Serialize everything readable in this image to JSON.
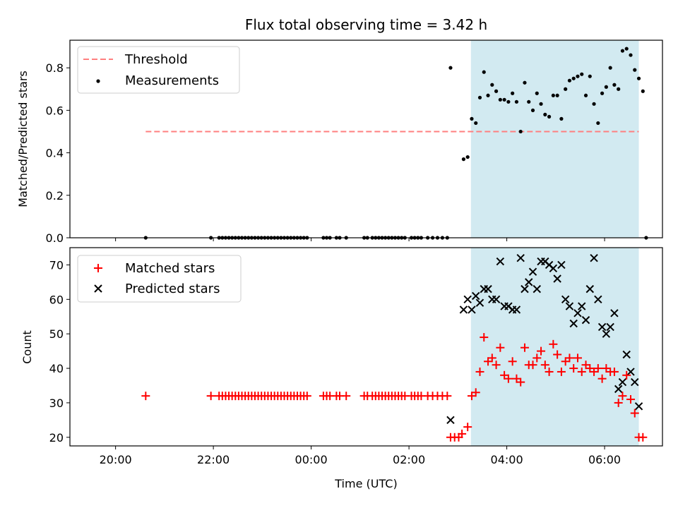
{
  "chart_data": [
    {
      "type": "scatter",
      "title": "Flux total observing time = 3.42 h",
      "xlabel": "",
      "ylabel": "Matched/Predicted stars",
      "ylim": [
        0,
        0.93
      ],
      "yticks": [
        "0.0",
        "0.2",
        "0.4",
        "0.6",
        "0.8"
      ],
      "xticks_visible": false,
      "highlight_span": {
        "from": "03:16",
        "to": "06:42",
        "color": "#add8e6"
      },
      "legend": {
        "position": "top-left",
        "entries": [
          "Threshold",
          "Measurements"
        ]
      },
      "threshold": {
        "name": "Threshold",
        "value": 0.5,
        "x_from": "20:37",
        "x_to": "06:42",
        "color": "#ff7f7f"
      },
      "series": [
        {
          "name": "Measurements",
          "color": "#000000",
          "points": [
            [
              "20:37",
              0
            ],
            [
              "21:57",
              0
            ],
            [
              "22:07",
              0
            ],
            [
              "22:11",
              0
            ],
            [
              "22:15",
              0
            ],
            [
              "22:19",
              0
            ],
            [
              "22:23",
              0
            ],
            [
              "22:27",
              0
            ],
            [
              "22:31",
              0
            ],
            [
              "22:35",
              0
            ],
            [
              "22:39",
              0
            ],
            [
              "22:43",
              0
            ],
            [
              "22:47",
              0
            ],
            [
              "22:51",
              0
            ],
            [
              "22:55",
              0
            ],
            [
              "22:59",
              0
            ],
            [
              "23:03",
              0
            ],
            [
              "23:07",
              0
            ],
            [
              "23:11",
              0
            ],
            [
              "23:15",
              0
            ],
            [
              "23:19",
              0
            ],
            [
              "23:23",
              0
            ],
            [
              "23:27",
              0
            ],
            [
              "23:31",
              0
            ],
            [
              "23:35",
              0
            ],
            [
              "23:39",
              0
            ],
            [
              "23:43",
              0
            ],
            [
              "23:47",
              0
            ],
            [
              "23:51",
              0
            ],
            [
              "23:55",
              0
            ],
            [
              "00:15",
              0
            ],
            [
              "00:19",
              0
            ],
            [
              "00:23",
              0
            ],
            [
              "00:31",
              0
            ],
            [
              "00:35",
              0
            ],
            [
              "00:43",
              0
            ],
            [
              "01:05",
              0
            ],
            [
              "01:09",
              0
            ],
            [
              "01:15",
              0
            ],
            [
              "01:19",
              0
            ],
            [
              "01:23",
              0
            ],
            [
              "01:27",
              0
            ],
            [
              "01:31",
              0
            ],
            [
              "01:35",
              0
            ],
            [
              "01:39",
              0
            ],
            [
              "01:43",
              0
            ],
            [
              "01:47",
              0
            ],
            [
              "01:51",
              0
            ],
            [
              "01:55",
              0
            ],
            [
              "02:03",
              0
            ],
            [
              "02:07",
              0
            ],
            [
              "02:11",
              0
            ],
            [
              "02:15",
              0
            ],
            [
              "02:23",
              0
            ],
            [
              "02:29",
              0
            ],
            [
              "02:35",
              0
            ],
            [
              "02:41",
              0
            ],
            [
              "02:47",
              0
            ],
            [
              "02:51",
              0.8
            ],
            [
              "03:07",
              0.37
            ],
            [
              "03:12",
              0.38
            ],
            [
              "03:17",
              0.56
            ],
            [
              "03:22",
              0.54
            ],
            [
              "03:27",
              0.66
            ],
            [
              "03:32",
              0.78
            ],
            [
              "03:37",
              0.67
            ],
            [
              "03:42",
              0.72
            ],
            [
              "03:47",
              0.69
            ],
            [
              "03:52",
              0.65
            ],
            [
              "03:57",
              0.65
            ],
            [
              "04:02",
              0.64
            ],
            [
              "04:07",
              0.68
            ],
            [
              "04:12",
              0.64
            ],
            [
              "04:17",
              0.5
            ],
            [
              "04:22",
              0.73
            ],
            [
              "04:27",
              0.64
            ],
            [
              "04:32",
              0.6
            ],
            [
              "04:37",
              0.68
            ],
            [
              "04:42",
              0.63
            ],
            [
              "04:47",
              0.58
            ],
            [
              "04:52",
              0.57
            ],
            [
              "04:57",
              0.67
            ],
            [
              "05:02",
              0.67
            ],
            [
              "05:07",
              0.56
            ],
            [
              "05:12",
              0.7
            ],
            [
              "05:17",
              0.74
            ],
            [
              "05:22",
              0.75
            ],
            [
              "05:27",
              0.76
            ],
            [
              "05:32",
              0.77
            ],
            [
              "05:37",
              0.67
            ],
            [
              "05:42",
              0.76
            ],
            [
              "05:47",
              0.63
            ],
            [
              "05:52",
              0.54
            ],
            [
              "05:57",
              0.68
            ],
            [
              "06:02",
              0.71
            ],
            [
              "06:07",
              0.8
            ],
            [
              "06:12",
              0.72
            ],
            [
              "06:17",
              0.7
            ],
            [
              "06:22",
              0.88
            ],
            [
              "06:27",
              0.89
            ],
            [
              "06:32",
              0.86
            ],
            [
              "06:37",
              0.79
            ],
            [
              "06:42",
              0.75
            ],
            [
              "06:47",
              0.69
            ],
            [
              "06:51",
              0
            ]
          ]
        }
      ]
    },
    {
      "type": "scatter",
      "title": "",
      "xlabel": "Time (UTC)",
      "ylabel": "Count",
      "ylim": [
        17.5,
        75
      ],
      "yticks": [
        "20",
        "30",
        "40",
        "50",
        "60",
        "70"
      ],
      "xticks": [
        "20:00",
        "22:00",
        "00:00",
        "02:00",
        "04:00",
        "06:00"
      ],
      "highlight_span": {
        "from": "03:16",
        "to": "06:42",
        "color": "#add8e6"
      },
      "legend": {
        "position": "top-left",
        "entries": [
          "Matched stars",
          "Predicted stars"
        ]
      },
      "series": [
        {
          "name": "Matched stars",
          "marker": "plus",
          "color": "#ff0000",
          "points": [
            [
              "20:37",
              32
            ],
            [
              "21:57",
              32
            ],
            [
              "22:07",
              32
            ],
            [
              "22:11",
              32
            ],
            [
              "22:15",
              32
            ],
            [
              "22:19",
              32
            ],
            [
              "22:23",
              32
            ],
            [
              "22:27",
              32
            ],
            [
              "22:31",
              32
            ],
            [
              "22:35",
              32
            ],
            [
              "22:39",
              32
            ],
            [
              "22:43",
              32
            ],
            [
              "22:47",
              32
            ],
            [
              "22:51",
              32
            ],
            [
              "22:55",
              32
            ],
            [
              "22:59",
              32
            ],
            [
              "23:03",
              32
            ],
            [
              "23:07",
              32
            ],
            [
              "23:11",
              32
            ],
            [
              "23:15",
              32
            ],
            [
              "23:19",
              32
            ],
            [
              "23:23",
              32
            ],
            [
              "23:27",
              32
            ],
            [
              "23:31",
              32
            ],
            [
              "23:35",
              32
            ],
            [
              "23:39",
              32
            ],
            [
              "23:43",
              32
            ],
            [
              "23:47",
              32
            ],
            [
              "23:51",
              32
            ],
            [
              "23:55",
              32
            ],
            [
              "00:15",
              32
            ],
            [
              "00:19",
              32
            ],
            [
              "00:23",
              32
            ],
            [
              "00:31",
              32
            ],
            [
              "00:35",
              32
            ],
            [
              "00:43",
              32
            ],
            [
              "01:05",
              32
            ],
            [
              "01:09",
              32
            ],
            [
              "01:15",
              32
            ],
            [
              "01:19",
              32
            ],
            [
              "01:23",
              32
            ],
            [
              "01:27",
              32
            ],
            [
              "01:31",
              32
            ],
            [
              "01:35",
              32
            ],
            [
              "01:39",
              32
            ],
            [
              "01:43",
              32
            ],
            [
              "01:47",
              32
            ],
            [
              "01:51",
              32
            ],
            [
              "01:55",
              32
            ],
            [
              "02:03",
              32
            ],
            [
              "02:07",
              32
            ],
            [
              "02:11",
              32
            ],
            [
              "02:15",
              32
            ],
            [
              "02:23",
              32
            ],
            [
              "02:29",
              32
            ],
            [
              "02:35",
              32
            ],
            [
              "02:41",
              32
            ],
            [
              "02:47",
              32
            ],
            [
              "02:51",
              20
            ],
            [
              "02:56",
              20
            ],
            [
              "03:01",
              20
            ],
            [
              "03:05",
              21
            ],
            [
              "03:12",
              23
            ],
            [
              "03:17",
              32
            ],
            [
              "03:22",
              33
            ],
            [
              "03:27",
              39
            ],
            [
              "03:32",
              49
            ],
            [
              "03:37",
              42
            ],
            [
              "03:42",
              43
            ],
            [
              "03:47",
              41
            ],
            [
              "03:52",
              46
            ],
            [
              "03:57",
              38
            ],
            [
              "04:02",
              37
            ],
            [
              "04:07",
              42
            ],
            [
              "04:12",
              37
            ],
            [
              "04:17",
              36
            ],
            [
              "04:22",
              46
            ],
            [
              "04:27",
              41
            ],
            [
              "04:32",
              41
            ],
            [
              "04:37",
              43
            ],
            [
              "04:42",
              45
            ],
            [
              "04:47",
              41
            ],
            [
              "04:52",
              39
            ],
            [
              "04:57",
              47
            ],
            [
              "05:02",
              44
            ],
            [
              "05:07",
              39
            ],
            [
              "05:12",
              42
            ],
            [
              "05:17",
              43
            ],
            [
              "05:22",
              40
            ],
            [
              "05:27",
              43
            ],
            [
              "05:32",
              39
            ],
            [
              "05:37",
              41
            ],
            [
              "05:42",
              40
            ],
            [
              "05:47",
              39
            ],
            [
              "05:52",
              40
            ],
            [
              "05:57",
              37
            ],
            [
              "06:02",
              40
            ],
            [
              "06:07",
              39
            ],
            [
              "06:12",
              39
            ],
            [
              "06:17",
              30
            ],
            [
              "06:22",
              32
            ],
            [
              "06:27",
              38
            ],
            [
              "06:32",
              31
            ],
            [
              "06:37",
              27
            ],
            [
              "06:42",
              20
            ],
            [
              "06:47",
              20
            ]
          ]
        },
        {
          "name": "Predicted stars",
          "marker": "x",
          "color": "#000000",
          "points": [
            [
              "02:51",
              25
            ],
            [
              "03:07",
              57
            ],
            [
              "03:12",
              60
            ],
            [
              "03:17",
              57
            ],
            [
              "03:22",
              61
            ],
            [
              "03:27",
              59
            ],
            [
              "03:32",
              63
            ],
            [
              "03:37",
              63
            ],
            [
              "03:42",
              60
            ],
            [
              "03:47",
              60
            ],
            [
              "03:52",
              71
            ],
            [
              "03:57",
              58
            ],
            [
              "04:02",
              58
            ],
            [
              "04:07",
              57
            ],
            [
              "04:12",
              57
            ],
            [
              "04:17",
              72
            ],
            [
              "04:22",
              63
            ],
            [
              "04:27",
              65
            ],
            [
              "04:32",
              68
            ],
            [
              "04:37",
              63
            ],
            [
              "04:42",
              71
            ],
            [
              "04:47",
              71
            ],
            [
              "04:52",
              70
            ],
            [
              "04:57",
              69
            ],
            [
              "05:02",
              66
            ],
            [
              "05:07",
              70
            ],
            [
              "05:12",
              60
            ],
            [
              "05:17",
              58
            ],
            [
              "05:22",
              53
            ],
            [
              "05:27",
              56
            ],
            [
              "05:32",
              58
            ],
            [
              "05:37",
              54
            ],
            [
              "05:42",
              63
            ],
            [
              "05:47",
              72
            ],
            [
              "05:52",
              60
            ],
            [
              "05:57",
              52
            ],
            [
              "06:02",
              50
            ],
            [
              "06:07",
              52
            ],
            [
              "06:12",
              56
            ],
            [
              "06:17",
              34
            ],
            [
              "06:22",
              36
            ],
            [
              "06:27",
              44
            ],
            [
              "06:32",
              39
            ],
            [
              "06:37",
              36
            ],
            [
              "06:42",
              29
            ]
          ]
        }
      ]
    }
  ]
}
